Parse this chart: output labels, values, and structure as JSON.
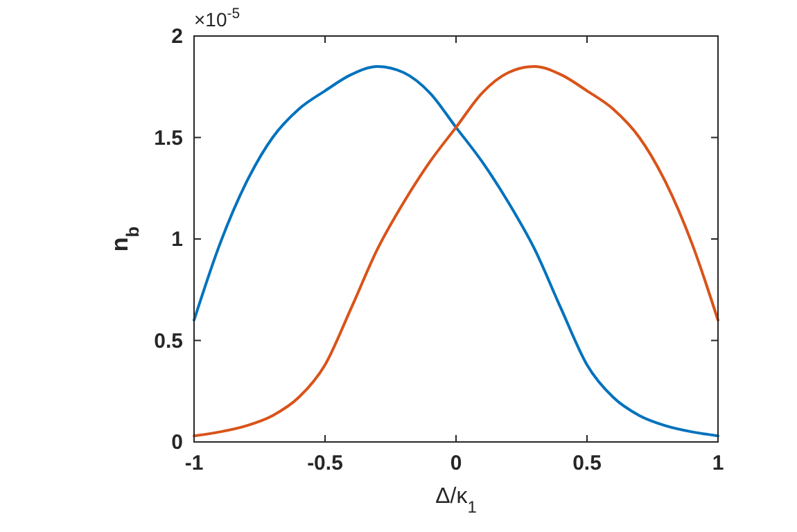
{
  "chart_data": {
    "type": "line",
    "xlabel": "Δ/κ$_{1}$",
    "ylabel": "n$_{b}$",
    "annotations": [
      "×10$^{-5}$"
    ],
    "x": [
      -1,
      -0.9,
      -0.8,
      -0.7,
      -0.6,
      -0.5,
      -0.4,
      -0.3,
      -0.2,
      -0.1,
      0,
      0.1,
      0.2,
      0.3,
      0.4,
      0.5,
      0.6,
      0.7,
      0.8,
      0.9,
      1
    ],
    "series": [
      {
        "color": "#0072bd",
        "values": [
          0.6,
          0.98,
          1.28,
          1.5,
          1.64,
          1.73,
          1.81,
          1.85,
          1.82,
          1.72,
          1.55,
          1.38,
          1.18,
          0.95,
          0.66,
          0.38,
          0.22,
          0.13,
          0.08,
          0.05,
          0.03
        ]
      },
      {
        "color": "#d95319",
        "values": [
          0.03,
          0.05,
          0.08,
          0.13,
          0.22,
          0.38,
          0.66,
          0.95,
          1.18,
          1.38,
          1.55,
          1.72,
          1.82,
          1.85,
          1.81,
          1.73,
          1.64,
          1.5,
          1.28,
          0.98,
          0.6
        ]
      }
    ],
    "xlim": [
      -1,
      1
    ],
    "xticks": [
      -1,
      -0.5,
      0,
      0.5,
      1
    ],
    "ylim": [
      0,
      2
    ],
    "yticks": [
      0,
      0.5,
      1,
      1.5,
      2
    ],
    "grid": false,
    "marker": "none",
    "line_style": "solid"
  }
}
